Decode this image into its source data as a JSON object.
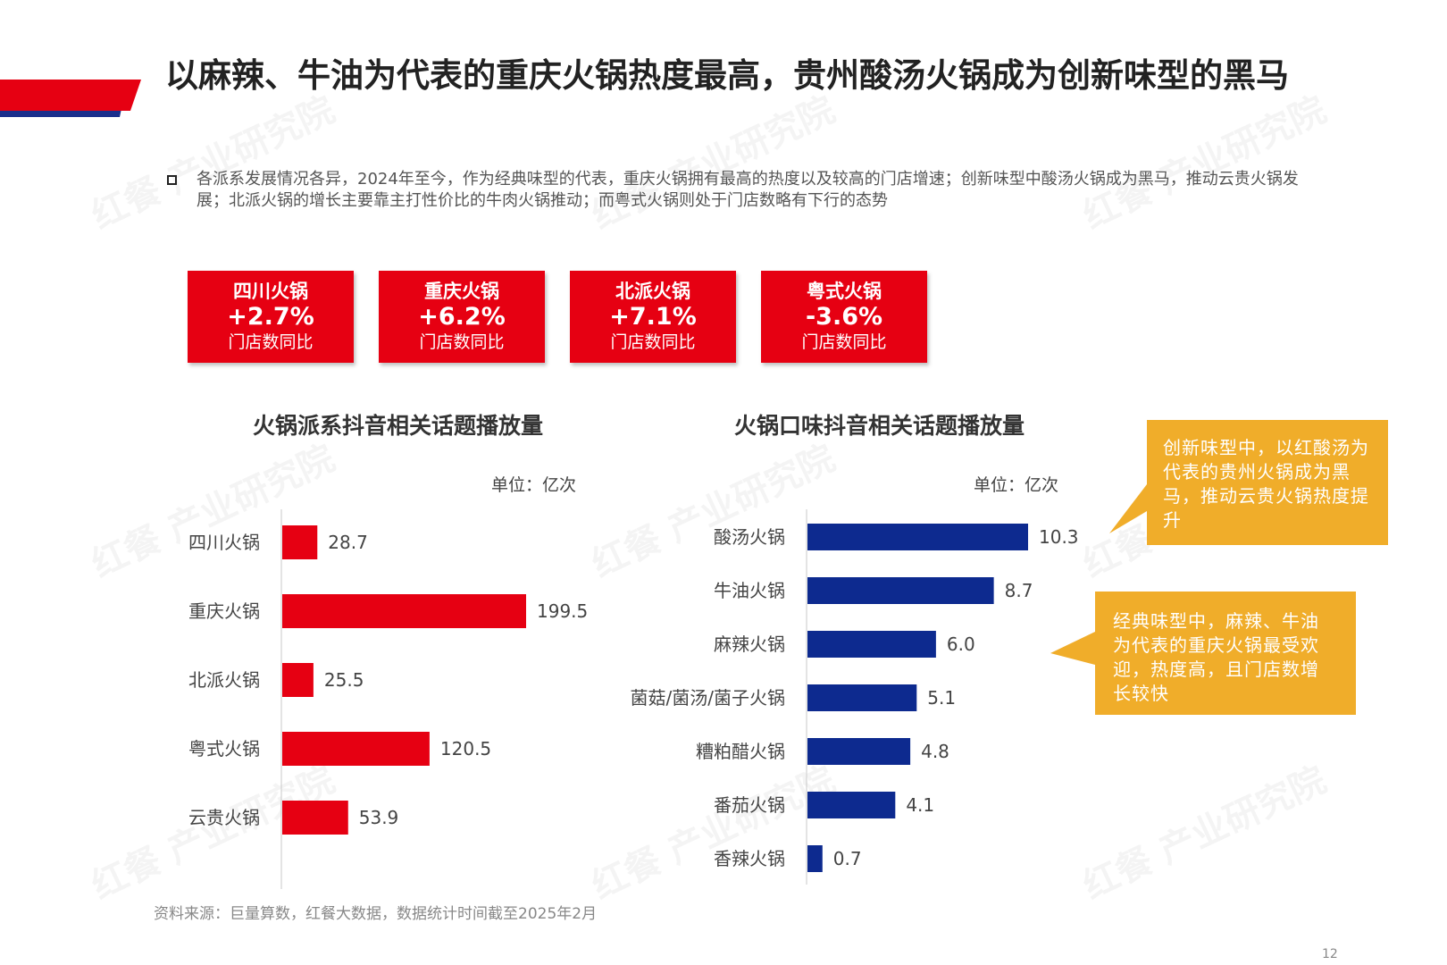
{
  "page": {
    "title": "以麻辣、牛油为代表的重庆火锅热度最高，贵州酸汤火锅成为创新味型的黑马",
    "summary": "各派系发展情况各异，2024年至今，作为经典味型的代表，重庆火锅拥有最高的热度以及较高的门店增速；创新味型中酸汤火锅成为黑马，推动云贵火锅发展；北派火锅的增长主要靠主打性价比的牛肉火锅推动；而粤式火锅则处于门店数略有下行的态势",
    "source": "资料来源：巨量算数，红餐大数据，数据统计时间截至2025年2月",
    "page_number": "12",
    "watermark": "红餐 产业研究院"
  },
  "kpi_cards": [
    {
      "name": "四川火锅",
      "value": "+2.7%",
      "desc": "门店数同比"
    },
    {
      "name": "重庆火锅",
      "value": "+6.2%",
      "desc": "门店数同比"
    },
    {
      "name": "北派火锅",
      "value": "+7.1%",
      "desc": "门店数同比"
    },
    {
      "name": "粤式火锅",
      "value": "-3.6%",
      "desc": "门店数同比"
    }
  ],
  "chart_data": [
    {
      "type": "bar",
      "orientation": "horizontal",
      "title": "火锅派系抖音相关话题播放量",
      "unit": "单位：亿次",
      "categories": [
        "四川火锅",
        "重庆火锅",
        "北派火锅",
        "粤式火锅",
        "云贵火锅"
      ],
      "values": [
        28.7,
        199.5,
        25.5,
        120.5,
        53.9
      ],
      "value_labels": [
        "28.7",
        "199.5",
        "25.5",
        "120.5",
        "53.9"
      ],
      "color": "#e60012"
    },
    {
      "type": "bar",
      "orientation": "horizontal",
      "title": "火锅口味抖音相关话题播放量",
      "unit": "单位：亿次",
      "categories": [
        "酸汤火锅",
        "牛油火锅",
        "麻辣火锅",
        "菌菇/菌汤/菌子火锅",
        "糟粕醋火锅",
        "番茄火锅",
        "香辣火锅"
      ],
      "values": [
        10.3,
        8.7,
        6.0,
        5.1,
        4.8,
        4.1,
        0.7
      ],
      "value_labels": [
        "10.3",
        "8.7",
        "6.0",
        "5.1",
        "4.8",
        "4.1",
        "0.7"
      ],
      "color": "#0d2a8f"
    }
  ],
  "callouts": [
    {
      "text": "创新味型中，以红酸汤为代表的贵州火锅成为黑马，推动云贵火锅热度提升",
      "color": "#f0ad2a"
    },
    {
      "text": "经典味型中，麻辣、牛油为代表的重庆火锅最受欢迎，热度高，且门店数增长较快",
      "color": "#f0ad2a"
    }
  ],
  "colors": {
    "brand_red": "#e60012",
    "brand_blue": "#0d2a8f",
    "callout_yellow": "#f0ad2a"
  }
}
